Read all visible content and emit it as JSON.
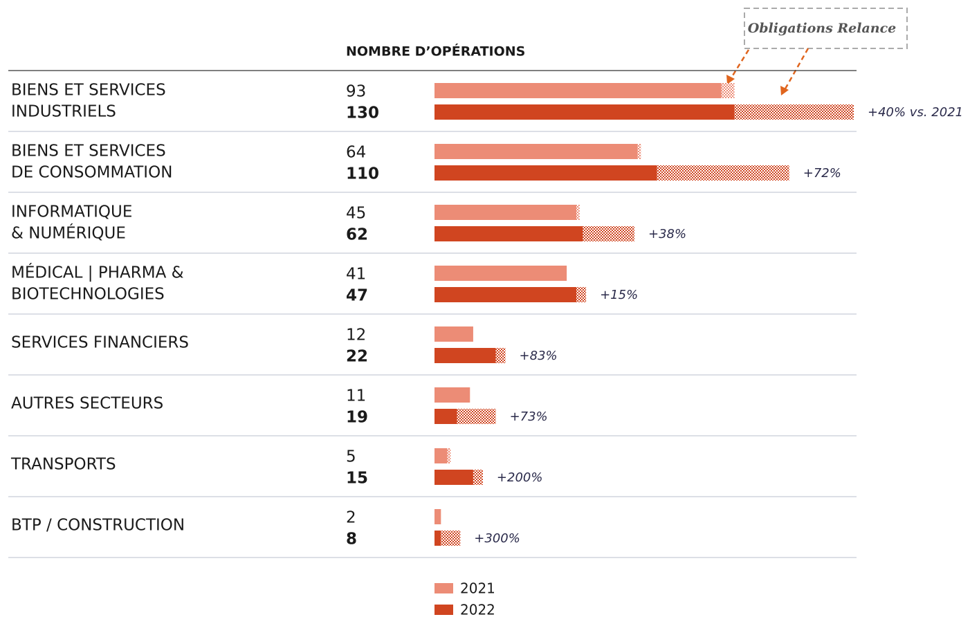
{
  "chart_data": {
    "type": "bar",
    "orientation": "horizontal",
    "stacked_hatch": true,
    "header": "NOMBRE D’OPÉRATIONS",
    "annotation": "Obligations Relance",
    "categories": [
      [
        "BIENS ET SERVICES",
        "INDUSTRIELS"
      ],
      [
        "BIENS ET SERVICES",
        "DE CONSOMMATION"
      ],
      [
        "INFORMATIQUE",
        "& NUMÉRIQUE"
      ],
      [
        "MÉDICAL | PHARMA &",
        "BIOTECHNOLOGIES"
      ],
      [
        "SERVICES FINANCIERS"
      ],
      [
        "AUTRES SECTEURS"
      ],
      [
        "TRANSPORTS"
      ],
      [
        "BTP / CONSTRUCTION"
      ]
    ],
    "xlim": [
      0,
      130
    ],
    "series": [
      {
        "name": "2021",
        "color": "#ec8c76",
        "values": [
          89,
          63,
          44,
          41,
          12,
          11,
          4,
          2
        ],
        "relance": [
          4,
          1,
          1,
          0,
          0,
          0,
          1,
          0
        ],
        "totals": [
          93,
          64,
          45,
          41,
          12,
          11,
          5,
          2
        ]
      },
      {
        "name": "2022",
        "color": "#d04520",
        "values": [
          93,
          69,
          46,
          44,
          19,
          7,
          12,
          2
        ],
        "relance": [
          37,
          41,
          16,
          3,
          3,
          12,
          3,
          6
        ],
        "totals": [
          130,
          110,
          62,
          47,
          22,
          19,
          15,
          8
        ]
      }
    ],
    "growth_labels": [
      "+40% vs. 2021",
      "+72%",
      "+38%",
      "+15%",
      "+83%",
      "+73%",
      "+200%",
      "+300%"
    ]
  }
}
